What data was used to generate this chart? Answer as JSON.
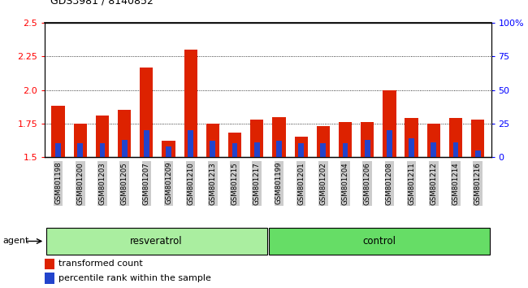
{
  "title": "GDS3981 / 8140852",
  "samples": [
    "GSM801198",
    "GSM801200",
    "GSM801203",
    "GSM801205",
    "GSM801207",
    "GSM801209",
    "GSM801210",
    "GSM801213",
    "GSM801215",
    "GSM801217",
    "GSM801199",
    "GSM801201",
    "GSM801202",
    "GSM801204",
    "GSM801206",
    "GSM801208",
    "GSM801211",
    "GSM801212",
    "GSM801214",
    "GSM801216"
  ],
  "transformed_count": [
    1.88,
    1.75,
    1.81,
    1.85,
    2.17,
    1.62,
    2.3,
    1.75,
    1.68,
    1.78,
    1.8,
    1.65,
    1.73,
    1.76,
    1.76,
    2.0,
    1.79,
    1.75,
    1.79,
    1.78
  ],
  "percentile_rank": [
    10,
    10,
    10,
    13,
    20,
    8,
    20,
    12,
    10,
    11,
    12,
    10,
    10,
    10,
    13,
    20,
    14,
    11,
    11,
    5
  ],
  "ylim_left": [
    1.5,
    2.5
  ],
  "ylim_right": [
    0,
    100
  ],
  "yticks_left": [
    1.5,
    1.75,
    2.0,
    2.25,
    2.5
  ],
  "yticks_right": [
    0,
    25,
    50,
    75,
    100
  ],
  "ytick_labels_right": [
    "0",
    "25",
    "50",
    "75",
    "100%"
  ],
  "bar_color_red": "#dd2200",
  "bar_color_blue": "#2244cc",
  "resveratrol_count": 10,
  "control_count": 10,
  "resveratrol_label": "resveratrol",
  "control_label": "control",
  "agent_label": "agent",
  "legend_red_label": "transformed count",
  "legend_blue_label": "percentile rank within the sample",
  "resveratrol_bg": "#aaeea0",
  "control_bg": "#66dd66",
  "tick_bg": "#cccccc",
  "bar_width": 0.6,
  "blue_bar_width": 0.25
}
